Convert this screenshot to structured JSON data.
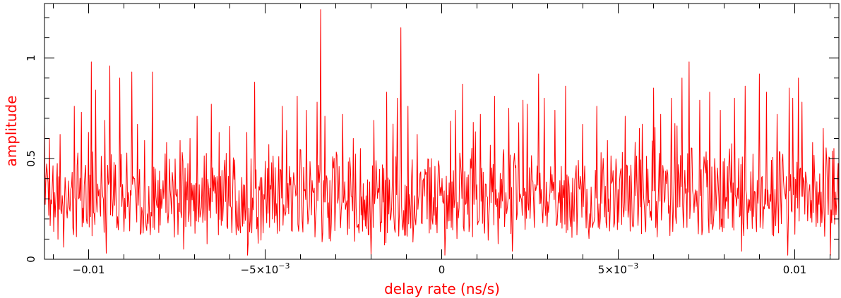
{
  "chart_data": {
    "type": "line",
    "title": "",
    "xlabel": "delay rate (ns/s)",
    "ylabel": "amplitude",
    "xlim": [
      -0.01125,
      0.01125
    ],
    "ylim": [
      0,
      1.27
    ],
    "grid": false,
    "legend": "none",
    "x_ticks": [
      {
        "value": -0.01,
        "label": "−0.01"
      },
      {
        "value": -0.005,
        "label": "−5×10",
        "exp": "−3"
      },
      {
        "value": 0,
        "label": "0"
      },
      {
        "value": 0.005,
        "label": "5×10",
        "exp": "−3"
      },
      {
        "value": 0.01,
        "label": "0.01"
      }
    ],
    "y_ticks": [
      {
        "value": 0,
        "label": "0"
      },
      {
        "value": 0.5,
        "label": "0.5"
      },
      {
        "value": 1,
        "label": "1"
      }
    ],
    "series": [
      {
        "color": "#ff0000",
        "x_start": -0.01125,
        "x_end": 0.01125,
        "n_points": 1120,
        "baseline_mean": 0.33,
        "noise_peaks": [
          [
            -0.0113,
            0.68
          ],
          [
            -0.0111,
            0.6
          ],
          [
            -0.0108,
            0.62
          ],
          [
            -0.0107,
            0.65
          ],
          [
            -0.0104,
            0.76
          ],
          [
            -0.0102,
            0.73
          ],
          [
            -0.01,
            0.63
          ],
          [
            -0.00993,
            0.98
          ],
          [
            -0.0098,
            0.84
          ],
          [
            -0.00954,
            0.69
          ],
          [
            -0.0094,
            0.96
          ],
          [
            -0.00912,
            0.9
          ],
          [
            -0.00878,
            0.93
          ],
          [
            -0.00862,
            0.67
          ],
          [
            -0.00842,
            0.59
          ],
          [
            -0.0082,
            0.93
          ],
          [
            -0.0078,
            0.58
          ],
          [
            -0.00741,
            0.59
          ],
          [
            -0.00712,
            0.6
          ],
          [
            -0.00692,
            0.71
          ],
          [
            -0.00652,
            0.77
          ],
          [
            -0.0063,
            0.63
          ],
          [
            -0.006,
            0.66
          ],
          [
            -0.00552,
            0.63
          ],
          [
            -0.0053,
            0.88
          ],
          [
            -0.0049,
            0.57
          ],
          [
            -0.00452,
            0.76
          ],
          [
            -0.0044,
            0.64
          ],
          [
            -0.0041,
            0.81
          ],
          [
            -0.00383,
            0.74
          ],
          [
            -0.00352,
            0.78
          ],
          [
            -0.00342,
            1.24
          ],
          [
            -0.0033,
            0.71
          ],
          [
            -0.0028,
            0.72
          ],
          [
            -0.0025,
            0.6
          ],
          [
            -0.0023,
            0.55
          ],
          [
            -0.00192,
            0.69
          ],
          [
            -0.00155,
            0.83
          ],
          [
            -0.00126,
            0.8
          ],
          [
            -0.00115,
            1.15
          ],
          [
            -0.00096,
            0.76
          ],
          [
            -0.0007,
            0.62
          ],
          [
            -0.0003,
            0.5
          ],
          [
            0.0001,
            0.85
          ],
          [
            0.0004,
            0.74
          ],
          [
            0.0006,
            0.87
          ],
          [
            0.0009,
            0.68
          ],
          [
            0.0011,
            0.72
          ],
          [
            0.0015,
            0.81
          ],
          [
            0.0019,
            0.75
          ],
          [
            0.0023,
            0.79
          ],
          [
            0.00242,
            0.77
          ],
          [
            0.00275,
            0.92
          ],
          [
            0.0029,
            0.8
          ],
          [
            0.0032,
            0.74
          ],
          [
            0.0035,
            0.86
          ],
          [
            0.004,
            0.67
          ],
          [
            0.0044,
            0.76
          ],
          [
            0.0047,
            0.59
          ],
          [
            0.0052,
            0.71
          ],
          [
            0.0056,
            0.65
          ],
          [
            0.006,
            0.85
          ],
          [
            0.0062,
            0.72
          ],
          [
            0.0065,
            0.8
          ],
          [
            0.0068,
            0.9
          ],
          [
            0.007,
            0.98
          ],
          [
            0.0073,
            0.79
          ],
          [
            0.0076,
            0.83
          ],
          [
            0.0079,
            0.74
          ],
          [
            0.0083,
            0.8
          ],
          [
            0.0086,
            0.86
          ],
          [
            0.009,
            0.92
          ],
          [
            0.0092,
            0.83
          ],
          [
            0.0095,
            0.72
          ],
          [
            0.00985,
            0.85
          ],
          [
            0.00995,
            0.8
          ],
          [
            0.0101,
            0.9
          ],
          [
            0.0102,
            0.78
          ],
          [
            0.0105,
            0.58
          ],
          [
            0.0108,
            0.65
          ],
          [
            0.0111,
            0.55
          ]
        ],
        "low_dips": [
          [
            -0.0107,
            0.06
          ],
          [
            -0.0095,
            0.03
          ],
          [
            -0.0073,
            0.05
          ],
          [
            -0.0055,
            0.02
          ],
          [
            -0.002,
            0.02
          ],
          [
            0.0001,
            0.02
          ],
          [
            0.002,
            0.04
          ],
          [
            0.0085,
            0.04
          ],
          [
            0.0098,
            0.02
          ],
          [
            0.011,
            0.02
          ]
        ]
      }
    ]
  }
}
